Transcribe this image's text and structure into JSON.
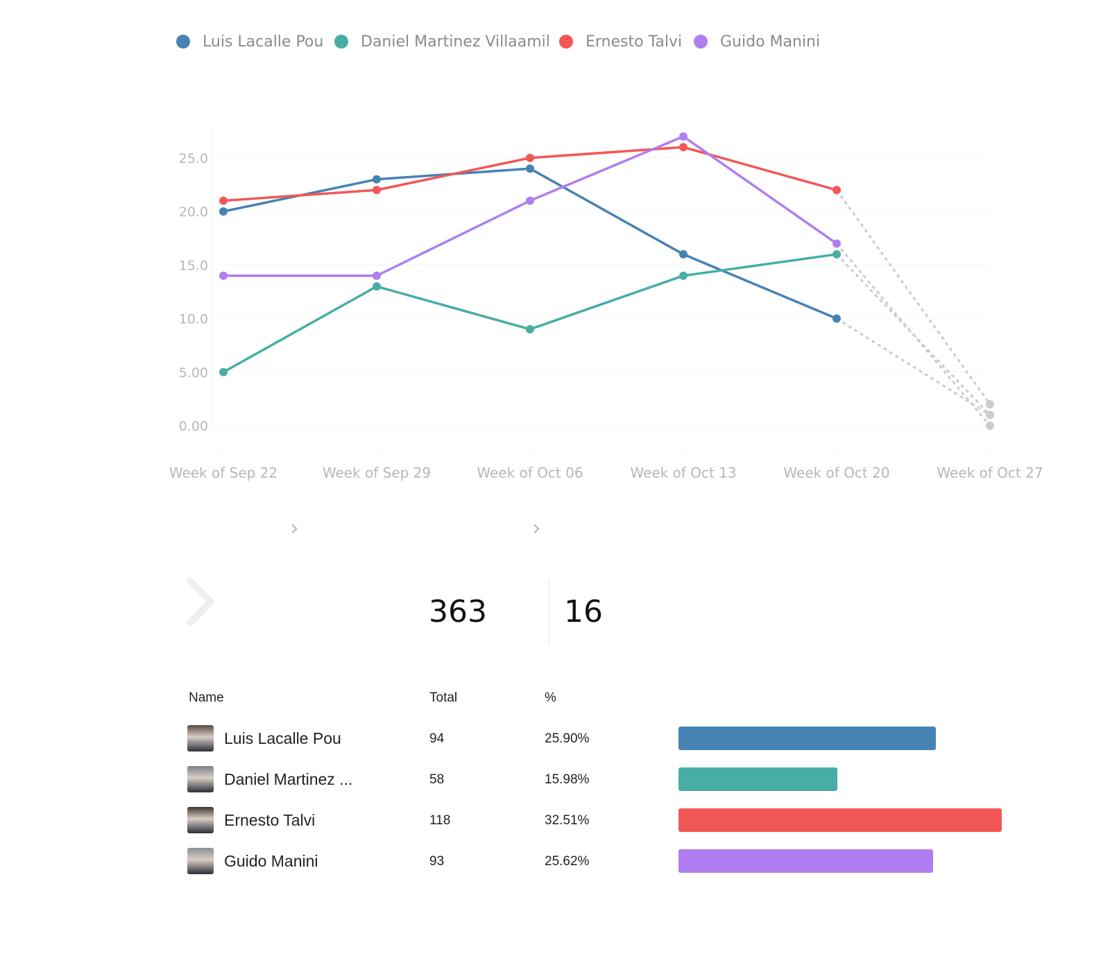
{
  "chart_data": {
    "type": "line",
    "categories": [
      "Week of Sep 22",
      "Week of Sep 29",
      "Week of Oct 06",
      "Week of Oct 13",
      "Week of Oct 20",
      "Week of Oct 27"
    ],
    "ylim": [
      0,
      27.5
    ],
    "yticks": [
      "0.00",
      "5.00",
      "10.0",
      "15.0",
      "20.0",
      "25.0"
    ],
    "grid": true,
    "legend_position": "top-left",
    "series": [
      {
        "name": "Luis Lacalle Pou",
        "color": "#4682b4",
        "values": [
          20,
          23,
          24,
          16,
          10,
          1
        ]
      },
      {
        "name": "Daniel Martinez Villaamil",
        "color": "#48ada5",
        "values": [
          5,
          13,
          9,
          14,
          16,
          1
        ]
      },
      {
        "name": "Ernesto Talvi",
        "color": "#f25757",
        "values": [
          21,
          22,
          25,
          26,
          22,
          2
        ]
      },
      {
        "name": "Guido Manini",
        "color": "#b07ef0",
        "values": [
          14,
          14,
          21,
          27,
          17,
          0
        ]
      }
    ],
    "dashed_segment": {
      "from_index": 4,
      "to_index": 5,
      "color": "#cccccc"
    }
  },
  "stats": {
    "total": "363",
    "second": "16"
  },
  "table": {
    "headers": {
      "name": "Name",
      "total": "Total",
      "pct": "%"
    },
    "max_total": 118,
    "rows": [
      {
        "name": "Luis Lacalle Pou",
        "total": "94",
        "pct": "25.90%",
        "value": 94,
        "color": "#4682b4",
        "avatar_bg": "#5a4a40"
      },
      {
        "name": "Daniel Martinez ...",
        "total": "58",
        "pct": "15.98%",
        "value": 58,
        "color": "#48ada5",
        "avatar_bg": "#7a7f88"
      },
      {
        "name": "Ernesto Talvi",
        "total": "118",
        "pct": "32.51%",
        "value": 118,
        "color": "#f25757",
        "avatar_bg": "#3a3430"
      },
      {
        "name": "Guido Manini",
        "total": "93",
        "pct": "25.62%",
        "value": 93,
        "color": "#b07ef0",
        "avatar_bg": "#8a8e96"
      }
    ]
  },
  "icons": {
    "nav": "chevron-right-icon",
    "expand": "chevron-right-icon"
  }
}
